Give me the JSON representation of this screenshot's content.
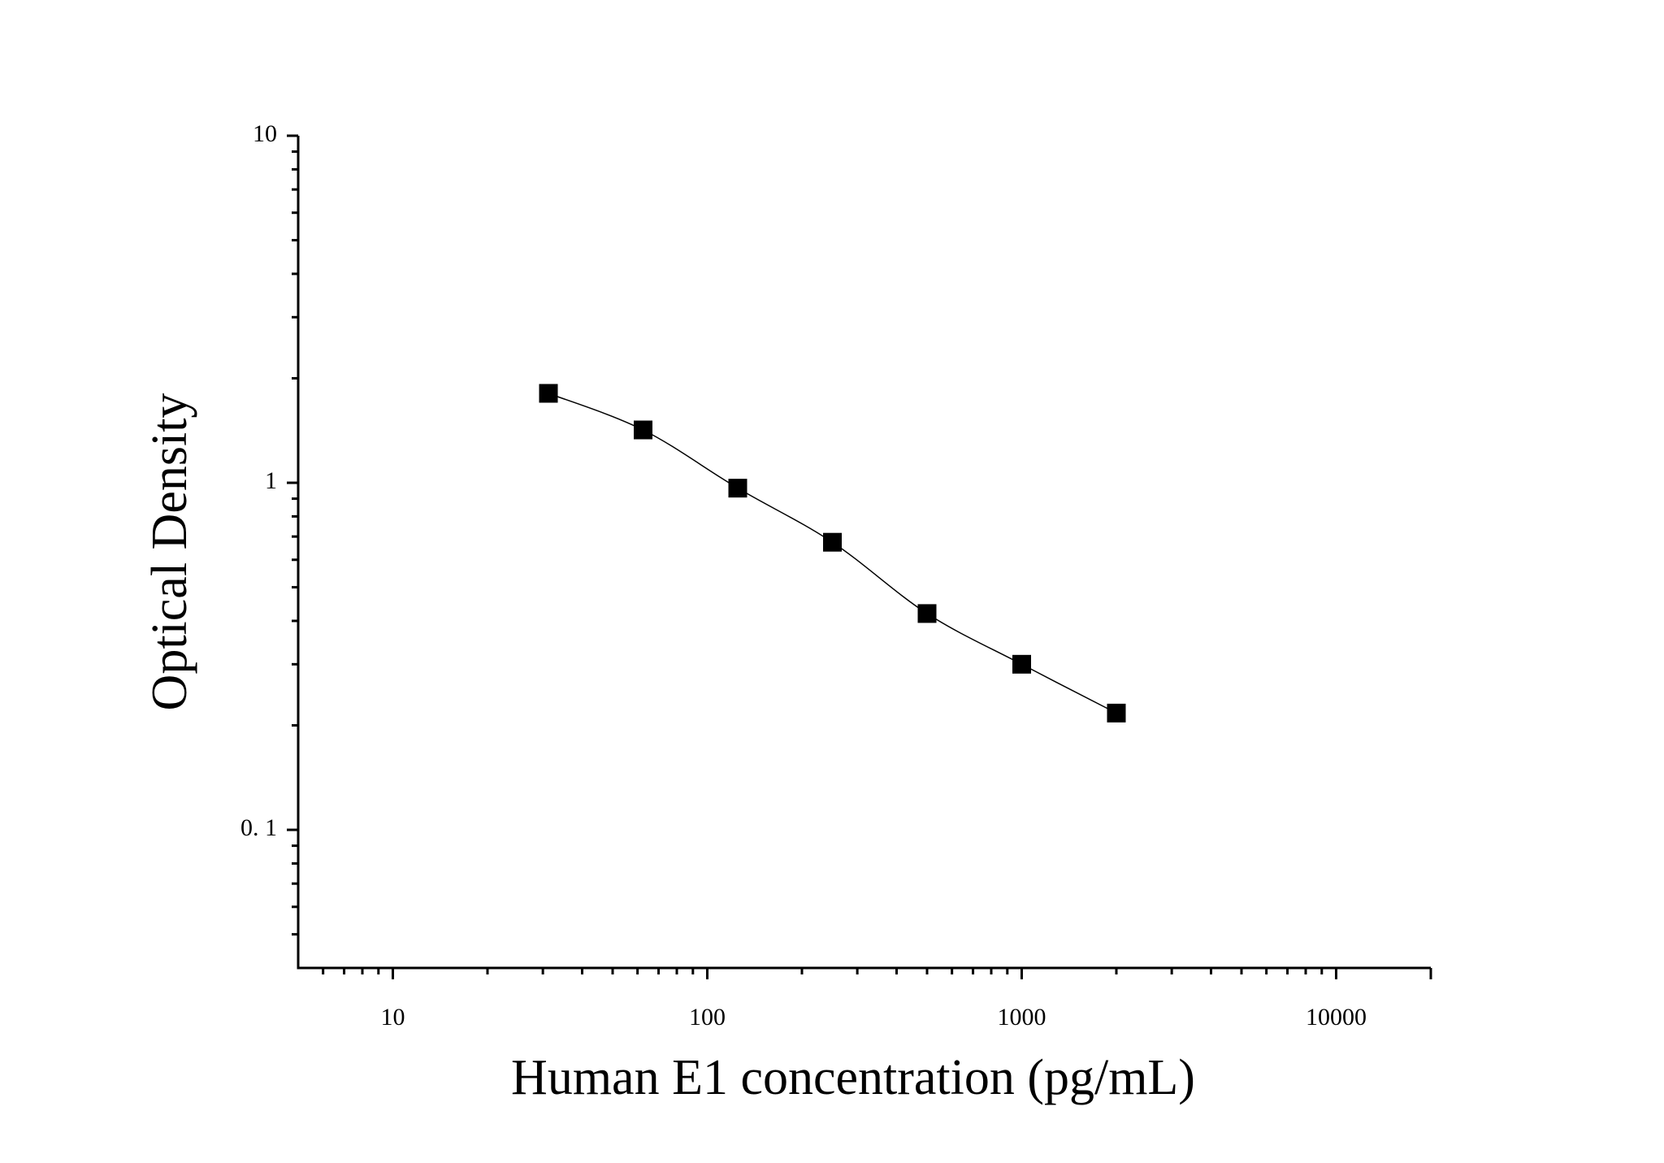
{
  "chart_data": {
    "type": "scatter",
    "xlabel": "Human E1 concentration (pg/mL)",
    "ylabel": "Optical Density",
    "xscale": "log",
    "yscale": "log",
    "xlim": [
      5,
      20000
    ],
    "ylim": [
      0.04,
      10
    ],
    "xticks": [
      10,
      100,
      1000,
      10000
    ],
    "xminorticks": [
      6,
      7,
      8,
      9,
      20,
      30,
      40,
      50,
      60,
      70,
      80,
      90,
      200,
      300,
      400,
      500,
      600,
      700,
      800,
      900,
      2000,
      3000,
      4000,
      5000,
      6000,
      7000,
      8000,
      9000
    ],
    "yticks": [
      10,
      1,
      {
        "value": 0.1,
        "label": "0. 1"
      }
    ],
    "yminorticks": [
      0.05,
      0.06,
      0.07,
      0.08,
      0.09,
      0.2,
      0.3,
      0.4,
      0.5,
      0.6,
      0.7,
      0.8,
      0.9,
      2,
      3,
      4,
      5,
      6,
      7,
      8,
      9
    ],
    "grid": false,
    "series": [
      {
        "color": "#000000",
        "x": [
          31.25,
          62.5,
          125,
          250,
          500,
          1000,
          2000
        ],
        "values": [
          1.81,
          1.42,
          0.965,
          0.674,
          0.42,
          0.3,
          0.217
        ]
      }
    ]
  }
}
